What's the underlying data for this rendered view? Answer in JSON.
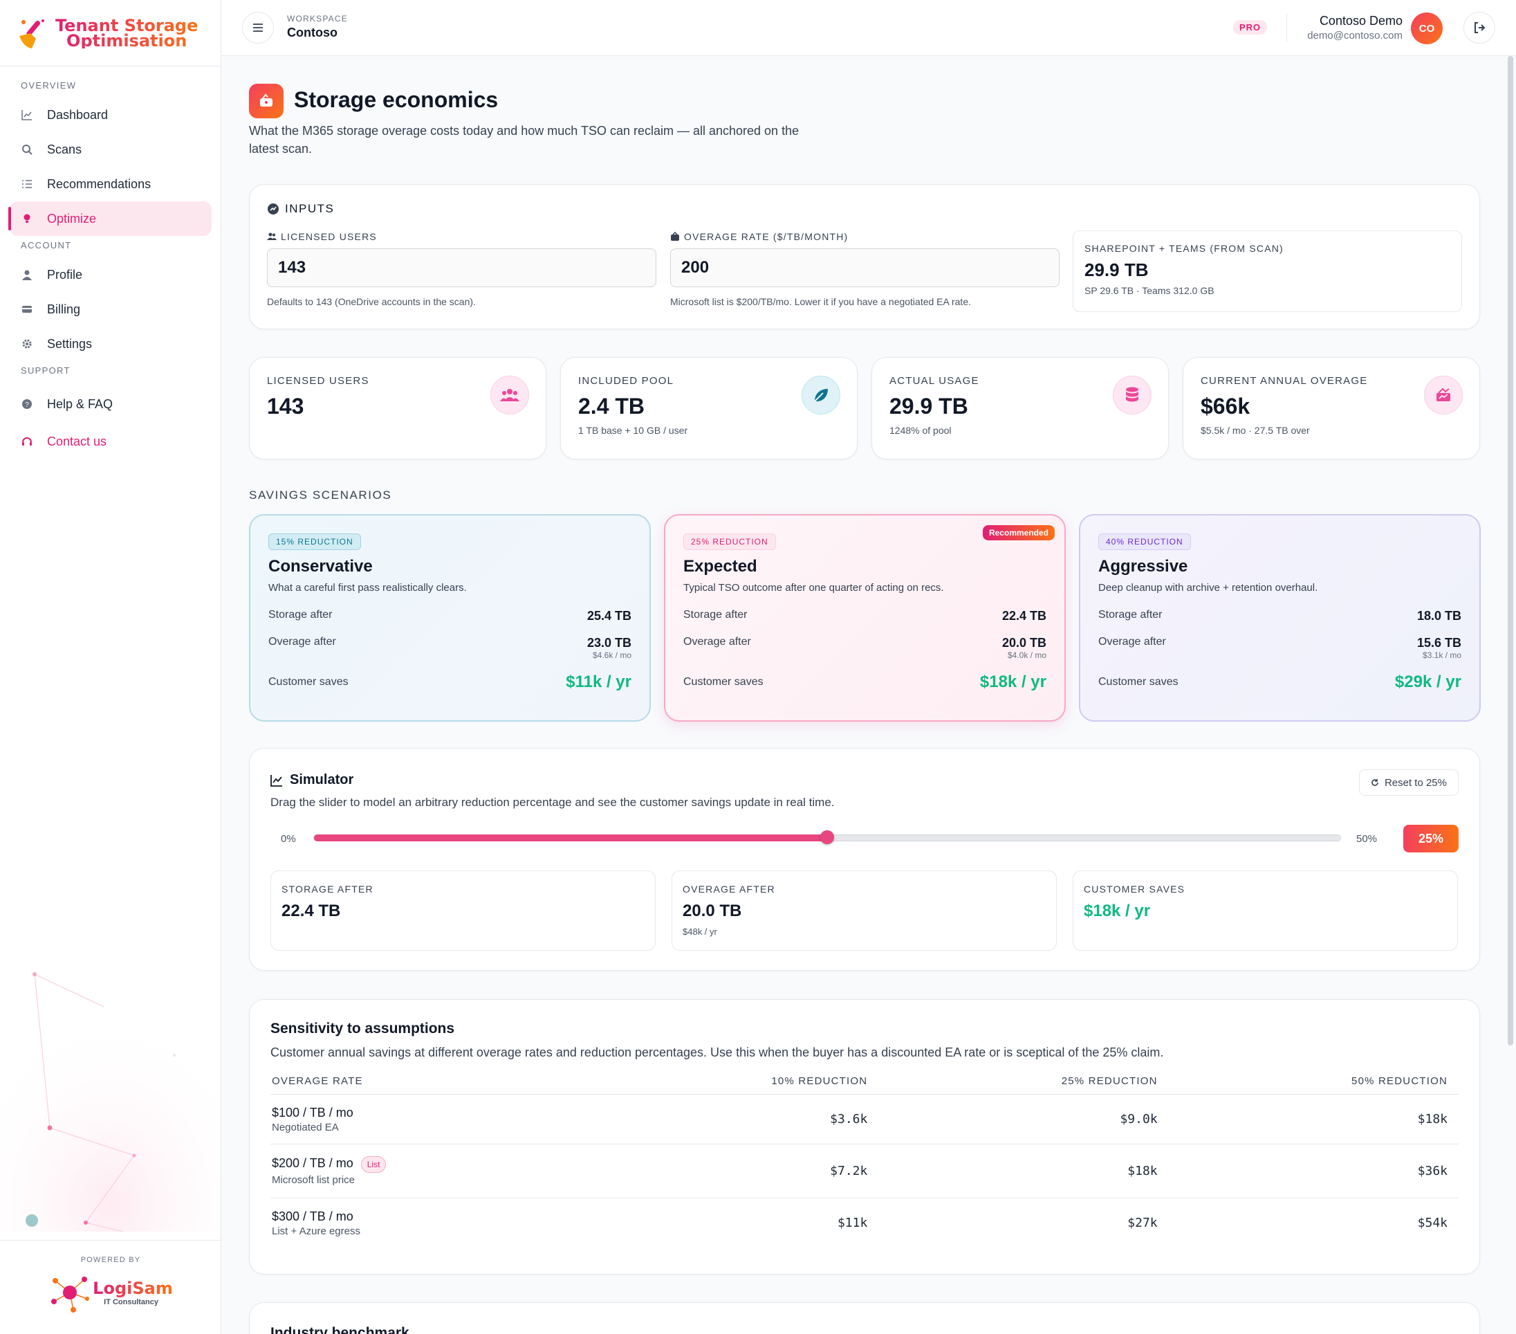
{
  "brand": {
    "line1": "Tenant Storage",
    "line2": "Optimisation"
  },
  "nav": {
    "overview_label": "OVERVIEW",
    "account_label": "ACCOUNT",
    "support_label": "SUPPORT",
    "dashboard": "Dashboard",
    "scans": "Scans",
    "recommendations": "Recommendations",
    "optimize": "Optimize",
    "profile": "Profile",
    "billing": "Billing",
    "settings": "Settings",
    "help": "Help & FAQ",
    "contact": "Contact us"
  },
  "powered": {
    "label": "POWERED BY",
    "company": "LogiSam",
    "tagline": "IT Consultancy"
  },
  "topbar": {
    "workspace_label": "WORKSPACE",
    "workspace": "Contoso",
    "plan": "PRO",
    "user_name": "Contoso Demo",
    "user_email": "demo@contoso.com",
    "avatar": "CO"
  },
  "page": {
    "title": "Storage economics",
    "subtitle": "What the M365 storage overage costs today and how much TSO can reclaim — all anchored on the latest scan."
  },
  "inputs": {
    "title": "INPUTS",
    "users_label": "LICENSED USERS",
    "users_value": "143",
    "users_hint": "Defaults to 143 (OneDrive accounts in the scan).",
    "rate_label": "OVERAGE RATE ($/TB/MONTH)",
    "rate_value": "200",
    "rate_hint": "Microsoft list is $200/TB/mo. Lower it if you have a negotiated EA rate.",
    "sp_label": "SHAREPOINT + TEAMS (FROM SCAN)",
    "sp_value": "29.9 TB",
    "sp_detail": "SP 29.6 TB · Teams 312.0 GB"
  },
  "stats": [
    {
      "label": "LICENSED USERS",
      "value": "143",
      "detail": "",
      "icon": "users-icon",
      "color": "#fce7f3",
      "fg": "#ec4899"
    },
    {
      "label": "INCLUDED POOL",
      "value": "2.4 TB",
      "detail": "1 TB base + 10 GB / user",
      "icon": "leaf-icon",
      "color": "#e0f2f7",
      "fg": "#0e7490"
    },
    {
      "label": "ACTUAL USAGE",
      "value": "29.9 TB",
      "detail": "1248% of pool",
      "icon": "database-icon",
      "color": "#fce7f3",
      "fg": "#ec4899"
    },
    {
      "label": "CURRENT ANNUAL OVERAGE",
      "value": "$66k",
      "detail": "$5.5k / mo · 27.5 TB over",
      "icon": "chart-icon",
      "color": "#fce7f3",
      "fg": "#ec4899"
    }
  ],
  "scenarios": {
    "heading": "SAVINGS SCENARIOS",
    "storage_label": "Storage after",
    "overage_label": "Overage after",
    "saves_label": "Customer saves",
    "items": [
      {
        "badge": "15% REDUCTION",
        "name": "Conservative",
        "desc": "What a careful first pass realistically clears.",
        "storage": "25.4 TB",
        "overage": "23.0 TB",
        "overage_mo": "$4.6k / mo",
        "saves": "$11k / yr"
      },
      {
        "badge": "25% REDUCTION",
        "name": "Expected",
        "desc": "Typical TSO outcome after one quarter of acting on recs.",
        "storage": "22.4 TB",
        "overage": "20.0 TB",
        "overage_mo": "$4.0k / mo",
        "saves": "$18k / yr",
        "flag": "Recommended"
      },
      {
        "badge": "40% REDUCTION",
        "name": "Aggressive",
        "desc": "Deep cleanup with archive + retention overhaul.",
        "storage": "18.0 TB",
        "overage": "15.6 TB",
        "overage_mo": "$3.1k / mo",
        "saves": "$29k / yr"
      }
    ]
  },
  "simulator": {
    "title": "Simulator",
    "desc": "Drag the slider to model an arbitrary reduction percentage and see the customer savings update in real time.",
    "reset": "Reset to 25%",
    "min": "0%",
    "max": "50%",
    "value_label": "25%",
    "fraction": 0.5,
    "storage_label": "STORAGE AFTER",
    "storage": "22.4 TB",
    "overage_label": "OVERAGE AFTER",
    "overage": "20.0 TB",
    "overage_yr": "$48k / yr",
    "saves_label": "CUSTOMER SAVES",
    "saves": "$18k / yr"
  },
  "sensitivity": {
    "title": "Sensitivity to assumptions",
    "desc": "Customer annual savings at different overage rates and reduction percentages. Use this when the buyer has a discounted EA rate or is sceptical of the 25% claim.",
    "headers": [
      "OVERAGE RATE",
      "10% REDUCTION",
      "25% REDUCTION",
      "50% REDUCTION"
    ],
    "rows": [
      {
        "rate": "$100 / TB / mo",
        "note": "Negotiated EA",
        "tag": "",
        "c1": "$3.6k",
        "c2": "$9.0k",
        "c3": "$18k"
      },
      {
        "rate": "$200 / TB / mo",
        "note": "Microsoft list price",
        "tag": "List",
        "c1": "$7.2k",
        "c2": "$18k",
        "c3": "$36k"
      },
      {
        "rate": "$300 / TB / mo",
        "note": "List + Azure egress",
        "tag": "",
        "c1": "$11k",
        "c2": "$27k",
        "c3": "$54k"
      }
    ]
  },
  "benchmark": {
    "title": "Industry benchmark"
  }
}
